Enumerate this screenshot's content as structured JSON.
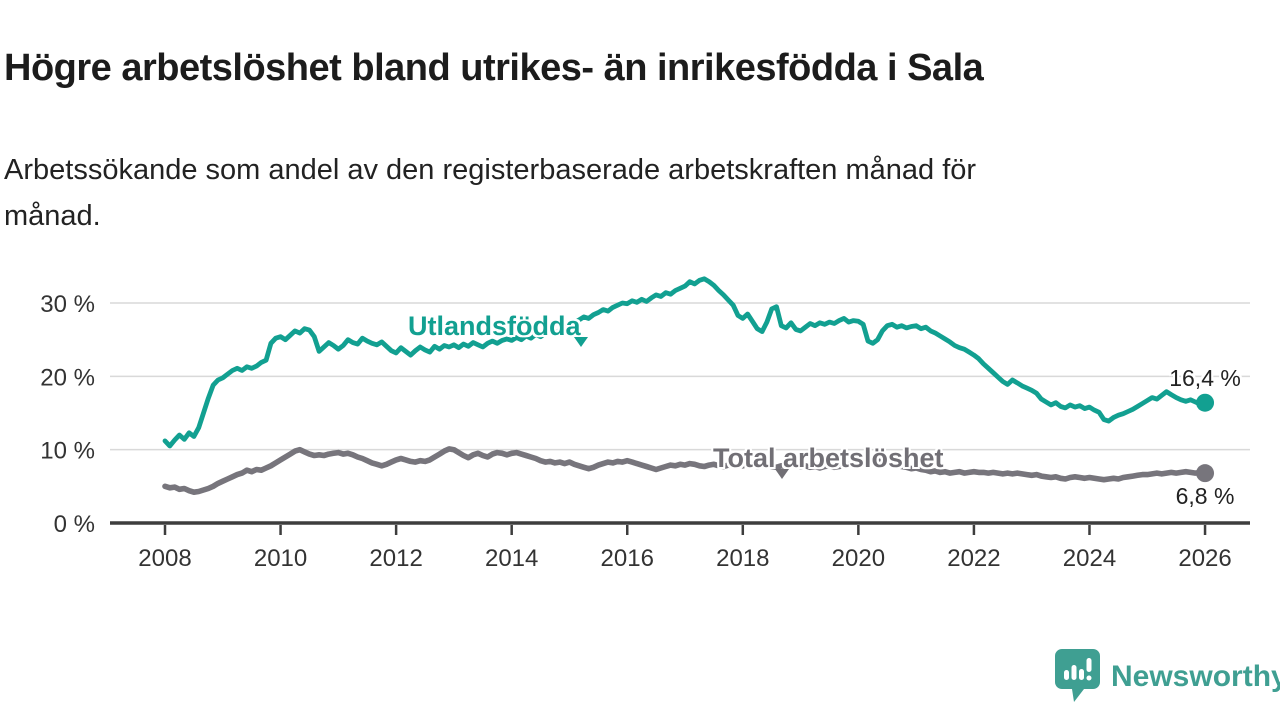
{
  "header": {
    "title": "Högre arbetslöshet bland utrikes- än inrikesfödda i Sala",
    "subtitle_line1": "Arbetssökande som andel av den registerbaserade arbetskraften månad för",
    "subtitle_line2": "månad."
  },
  "chart_data": {
    "type": "line",
    "x_start_year": 2008,
    "x_frequency": "monthly",
    "x_end": "2026-01",
    "xtick_years": [
      2008,
      2010,
      2012,
      2014,
      2016,
      2018,
      2020,
      2022,
      2024,
      2026
    ],
    "ytick_values": [
      0,
      10,
      20,
      30
    ],
    "ytick_labels": [
      "0 %",
      "10 %",
      "20 %",
      "30 %"
    ],
    "ylim": [
      0,
      34
    ],
    "grid": true,
    "legend": "inline-labels",
    "colors": {
      "utlandsfodda": "#12a091",
      "total": "#77757c",
      "grid": "#d9d9d9",
      "axis": "#3d3d3d"
    },
    "series": [
      {
        "name": "Utlandsfödda",
        "color": "#12a091",
        "end_label": "16,4 %",
        "end_value": 16.4,
        "values": [
          11.2,
          10.5,
          11.3,
          12.0,
          11.4,
          12.3,
          11.8,
          13.0,
          15.0,
          17.0,
          18.8,
          19.5,
          19.8,
          20.3,
          20.8,
          21.1,
          20.8,
          21.3,
          21.1,
          21.4,
          21.9,
          22.2,
          24.5,
          25.2,
          25.4,
          25.0,
          25.6,
          26.2,
          25.9,
          26.5,
          26.3,
          25.4,
          23.4,
          24.0,
          24.6,
          24.2,
          23.7,
          24.2,
          25.0,
          24.6,
          24.4,
          25.2,
          24.8,
          24.5,
          24.3,
          24.7,
          24.1,
          23.5,
          23.2,
          23.9,
          23.4,
          22.9,
          23.5,
          24.0,
          23.6,
          23.3,
          24.1,
          23.7,
          24.2,
          24.0,
          24.3,
          23.9,
          24.4,
          24.1,
          24.6,
          24.3,
          24.0,
          24.5,
          24.8,
          24.5,
          24.9,
          25.1,
          24.9,
          25.3,
          25.0,
          25.5,
          25.2,
          25.7,
          25.4,
          25.9,
          26.2,
          25.9,
          26.3,
          26.6,
          26.9,
          27.3,
          27.7,
          28.1,
          27.9,
          28.4,
          28.7,
          29.1,
          28.9,
          29.4,
          29.7,
          30.0,
          29.9,
          30.3,
          30.1,
          30.5,
          30.2,
          30.7,
          31.1,
          30.9,
          31.4,
          31.2,
          31.7,
          32.0,
          32.3,
          32.9,
          32.6,
          33.1,
          33.3,
          32.9,
          32.4,
          31.7,
          31.1,
          30.4,
          29.7,
          28.3,
          27.9,
          28.5,
          27.5,
          26.5,
          26.1,
          27.4,
          29.2,
          29.5,
          26.9,
          26.6,
          27.3,
          26.4,
          26.2,
          26.7,
          27.2,
          26.9,
          27.3,
          27.1,
          27.4,
          27.2,
          27.6,
          27.9,
          27.4,
          27.6,
          27.5,
          27.1,
          24.8,
          24.5,
          25.0,
          26.2,
          26.9,
          27.1,
          26.7,
          26.9,
          26.6,
          26.8,
          26.9,
          26.5,
          26.7,
          26.2,
          25.9,
          25.5,
          25.1,
          24.7,
          24.2,
          23.9,
          23.7,
          23.3,
          22.9,
          22.4,
          21.7,
          21.1,
          20.5,
          19.9,
          19.3,
          18.9,
          19.5,
          19.1,
          18.7,
          18.4,
          18.1,
          17.7,
          16.9,
          16.5,
          16.1,
          16.4,
          15.9,
          15.7,
          16.1,
          15.8,
          16.0,
          15.6,
          15.8,
          15.4,
          15.1,
          14.1,
          13.9,
          14.4,
          14.7,
          14.9,
          15.2,
          15.5,
          15.9,
          16.3,
          16.7,
          17.1,
          16.9,
          17.4,
          17.9,
          17.5,
          17.1,
          16.8,
          16.6,
          16.8,
          16.5,
          16.2,
          16.4
        ]
      },
      {
        "name": "Total arbetslöshet",
        "color": "#77757c",
        "end_label": "6,8 %",
        "end_value": 6.8,
        "values": [
          5.0,
          4.8,
          4.9,
          4.6,
          4.7,
          4.4,
          4.2,
          4.3,
          4.5,
          4.7,
          5.0,
          5.4,
          5.7,
          6.0,
          6.3,
          6.6,
          6.8,
          7.2,
          7.0,
          7.3,
          7.2,
          7.5,
          7.8,
          8.2,
          8.6,
          9.0,
          9.4,
          9.8,
          10.0,
          9.7,
          9.4,
          9.2,
          9.3,
          9.2,
          9.4,
          9.5,
          9.6,
          9.4,
          9.5,
          9.3,
          9.0,
          8.8,
          8.5,
          8.2,
          8.0,
          7.8,
          8.0,
          8.3,
          8.6,
          8.8,
          8.6,
          8.4,
          8.3,
          8.5,
          8.4,
          8.6,
          9.0,
          9.4,
          9.8,
          10.1,
          10.0,
          9.6,
          9.2,
          8.9,
          9.3,
          9.5,
          9.2,
          9.0,
          9.4,
          9.6,
          9.5,
          9.3,
          9.5,
          9.6,
          9.4,
          9.2,
          9.0,
          8.8,
          8.5,
          8.3,
          8.4,
          8.2,
          8.3,
          8.1,
          8.3,
          8.0,
          7.8,
          7.6,
          7.4,
          7.6,
          7.9,
          8.1,
          8.3,
          8.2,
          8.4,
          8.3,
          8.5,
          8.3,
          8.1,
          7.9,
          7.7,
          7.5,
          7.3,
          7.5,
          7.7,
          7.9,
          7.8,
          8.0,
          7.9,
          8.1,
          8.0,
          7.8,
          7.7,
          7.9,
          8.0,
          7.8,
          7.7,
          7.9,
          7.8,
          7.9,
          7.8,
          8.0,
          7.9,
          7.7,
          7.8,
          7.9,
          7.7,
          7.6,
          7.8,
          7.7,
          7.9,
          7.8,
          7.7,
          7.8,
          7.6,
          7.7,
          7.5,
          7.7,
          7.8,
          7.6,
          7.7,
          7.9,
          8.0,
          8.1,
          8.2,
          8.1,
          8.4,
          8.6,
          8.5,
          8.3,
          8.2,
          8.0,
          7.9,
          7.7,
          7.6,
          7.4,
          7.5,
          7.3,
          7.2,
          7.0,
          7.1,
          6.9,
          7.0,
          6.8,
          6.9,
          7.0,
          6.8,
          6.9,
          7.0,
          6.9,
          6.9,
          6.8,
          6.9,
          6.8,
          6.7,
          6.8,
          6.7,
          6.8,
          6.7,
          6.6,
          6.5,
          6.6,
          6.4,
          6.3,
          6.2,
          6.3,
          6.1,
          6.0,
          6.2,
          6.3,
          6.2,
          6.1,
          6.2,
          6.1,
          6.0,
          5.9,
          6.0,
          6.1,
          6.0,
          6.2,
          6.3,
          6.4,
          6.5,
          6.6,
          6.6,
          6.7,
          6.8,
          6.7,
          6.8,
          6.9,
          6.8,
          6.9,
          7.0,
          6.9,
          6.8,
          6.9,
          6.8
        ]
      }
    ]
  },
  "footer": {
    "brand": "Newsworthy"
  }
}
